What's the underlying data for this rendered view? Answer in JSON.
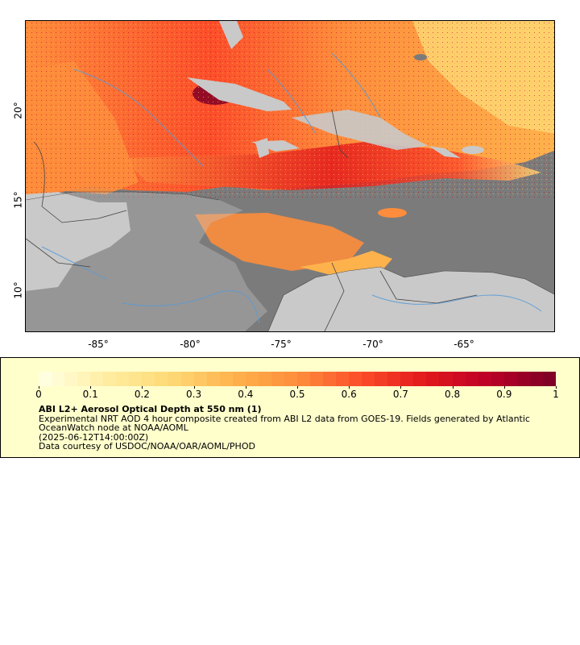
{
  "map": {
    "x_axis": {
      "ticks": [
        "-85°",
        "-80°",
        "-75°",
        "-70°",
        "-65°"
      ]
    },
    "y_axis": {
      "ticks": [
        "20°",
        "15°",
        "10°"
      ]
    },
    "colors": {
      "ocean": "#7b7b7b",
      "land_missing": "#c9c9c9",
      "rivers": "#5b9bd5",
      "borders": "#444444"
    }
  },
  "colorbar": {
    "ticks": [
      "0",
      "0.1",
      "0.2",
      "0.3",
      "0.4",
      "0.5",
      "0.6",
      "0.7",
      "0.8",
      "0.9",
      "1"
    ],
    "range": [
      0,
      1
    ],
    "colors": [
      "#ffffe0",
      "#ffeda0",
      "#fed976",
      "#feb24c",
      "#fd8d3c",
      "#fc4e2a",
      "#e31a1c",
      "#bd0026",
      "#800026"
    ]
  },
  "legend": {
    "title": "ABI L2+ Aerosol Optical Depth at 550 nm (1)",
    "description": "Experimental NRT AOD 4 hour composite created from ABI L2 data from GOES-19. Fields generated by Atlantic OceanWatch node at NOAA/AOML",
    "timestamp": "(2025-06-12T14:00:00Z)",
    "credit": "Data courtesy of USDOC/NOAA/OAR/AOML/PHOD"
  }
}
